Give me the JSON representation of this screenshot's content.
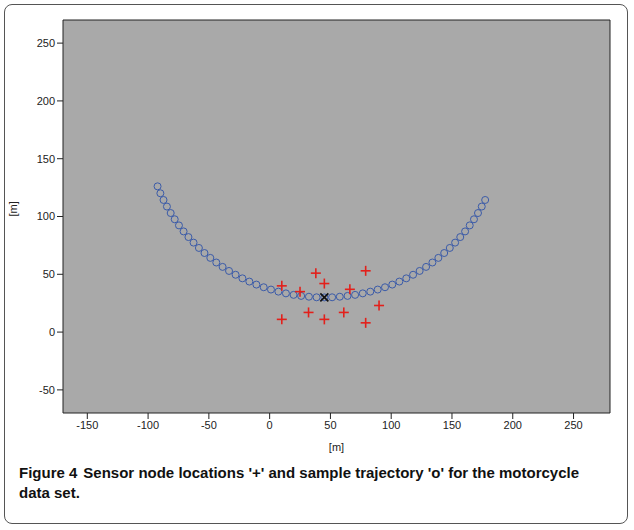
{
  "chart_data": {
    "type": "scatter",
    "caption_label": "Figure 4",
    "caption": "Sensor node locations '+' and sample trajectory 'o' for the motorcycle data set.",
    "xlabel": "[m]",
    "ylabel": "[m]",
    "xlim": [
      -170,
      280
    ],
    "ylim": [
      -70,
      270
    ],
    "xticks": [
      -150,
      -100,
      -50,
      0,
      50,
      100,
      150,
      200,
      250
    ],
    "yticks": [
      -50,
      0,
      50,
      100,
      150,
      200,
      250
    ],
    "grid": false,
    "series": [
      {
        "marker": "circle",
        "color": "#3b5ba8",
        "x": [
          -92.2,
          -89.9,
          -87.3,
          -84.5,
          -81.4,
          -78.1,
          -74.6,
          -70.8,
          -66.8,
          -62.6,
          -58.2,
          -53.6,
          -48.8,
          -43.9,
          -38.7,
          -33.4,
          -28.0,
          -22.4,
          -16.7,
          -10.9,
          -4.9,
          1.1,
          7.2,
          13.4,
          19.7,
          25.9,
          32.3,
          38.6,
          45,
          51.4,
          57.7,
          64.1,
          70.3,
          76.6,
          82.8,
          88.9,
          94.9,
          100.9,
          106.7,
          112.4,
          118.0,
          123.4,
          128.7,
          133.9,
          138.8,
          143.6,
          148.2,
          152.6,
          156.8,
          160.8,
          164.6,
          168.1,
          171.4,
          174.5,
          177.3
        ],
        "y": [
          126.1,
          120.1,
          114.3,
          108.6,
          103.0,
          97.6,
          92.3,
          87.1,
          82.2,
          77.4,
          72.8,
          68.4,
          64.2,
          60.2,
          56.4,
          52.9,
          49.6,
          46.5,
          43.7,
          41.1,
          38.8,
          36.8,
          35.0,
          33.5,
          32.2,
          31.3,
          30.6,
          30.1,
          30,
          30.1,
          30.6,
          31.3,
          32.2,
          33.5,
          35.0,
          36.8,
          38.8,
          41.1,
          43.7,
          46.5,
          49.6,
          52.9,
          56.4,
          60.2,
          64.2,
          68.4,
          72.8,
          77.4,
          82.2,
          87.1,
          92.3,
          97.6,
          103.0,
          108.6,
          114.3
        ]
      },
      {
        "marker": "plus",
        "color": "#e3201b",
        "x": [
          10,
          25,
          38,
          45,
          66,
          79,
          90,
          10,
          32,
          45,
          61,
          79
        ],
        "y": [
          40,
          35,
          51,
          42,
          37,
          53,
          23,
          11,
          17,
          11,
          17,
          8
        ]
      },
      {
        "marker": "x",
        "color": "#111111",
        "x": [
          45
        ],
        "y": [
          30
        ]
      }
    ]
  }
}
